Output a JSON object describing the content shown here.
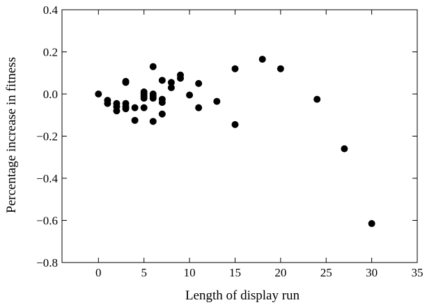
{
  "chart_data": {
    "type": "scatter",
    "xlabel": "Length of display run",
    "ylabel": "Percentage increase in fitness",
    "xlim": [
      -4,
      35
    ],
    "ylim": [
      -0.8,
      0.4
    ],
    "xticks": [
      0,
      5,
      10,
      15,
      20,
      25,
      30,
      35
    ],
    "yticks": [
      0.4,
      0.2,
      0.0,
      -0.2,
      -0.4,
      -0.6,
      -0.8
    ],
    "xtick_labels": [
      "0",
      "5",
      "10",
      "15",
      "20",
      "25",
      "30",
      "35"
    ],
    "ytick_labels": [
      "0.4",
      "0.2",
      "0.0",
      "−0.2",
      "−0.4",
      "−0.6",
      "−0.8"
    ],
    "grid": false,
    "legend": "none",
    "marker_color": "#000000",
    "points": [
      {
        "x": 0,
        "y": 0.0
      },
      {
        "x": 1,
        "y": -0.03
      },
      {
        "x": 1,
        "y": -0.045
      },
      {
        "x": 2,
        "y": -0.045
      },
      {
        "x": 2,
        "y": -0.06
      },
      {
        "x": 2,
        "y": -0.08
      },
      {
        "x": 3,
        "y": 0.06
      },
      {
        "x": 3,
        "y": 0.055
      },
      {
        "x": 3,
        "y": -0.045
      },
      {
        "x": 3,
        "y": -0.06
      },
      {
        "x": 3,
        "y": -0.07
      },
      {
        "x": 4,
        "y": -0.065
      },
      {
        "x": 4,
        "y": -0.125
      },
      {
        "x": 5,
        "y": 0.01
      },
      {
        "x": 5,
        "y": 0.0
      },
      {
        "x": 5,
        "y": -0.01
      },
      {
        "x": 5,
        "y": -0.02
      },
      {
        "x": 5,
        "y": -0.065
      },
      {
        "x": 6,
        "y": 0.13
      },
      {
        "x": 6,
        "y": 0.0
      },
      {
        "x": 6,
        "y": -0.01
      },
      {
        "x": 6,
        "y": -0.02
      },
      {
        "x": 6,
        "y": -0.13
      },
      {
        "x": 7,
        "y": 0.065
      },
      {
        "x": 7,
        "y": -0.025
      },
      {
        "x": 7,
        "y": -0.04
      },
      {
        "x": 7,
        "y": -0.095
      },
      {
        "x": 8,
        "y": 0.055
      },
      {
        "x": 8,
        "y": 0.03
      },
      {
        "x": 9,
        "y": 0.09
      },
      {
        "x": 9,
        "y": 0.075
      },
      {
        "x": 10,
        "y": -0.005
      },
      {
        "x": 11,
        "y": 0.05
      },
      {
        "x": 11,
        "y": -0.065
      },
      {
        "x": 13,
        "y": -0.035
      },
      {
        "x": 15,
        "y": 0.12
      },
      {
        "x": 15,
        "y": -0.145
      },
      {
        "x": 18,
        "y": 0.165
      },
      {
        "x": 20,
        "y": 0.12
      },
      {
        "x": 24,
        "y": -0.025
      },
      {
        "x": 27,
        "y": -0.26
      },
      {
        "x": 30,
        "y": -0.615
      }
    ]
  }
}
